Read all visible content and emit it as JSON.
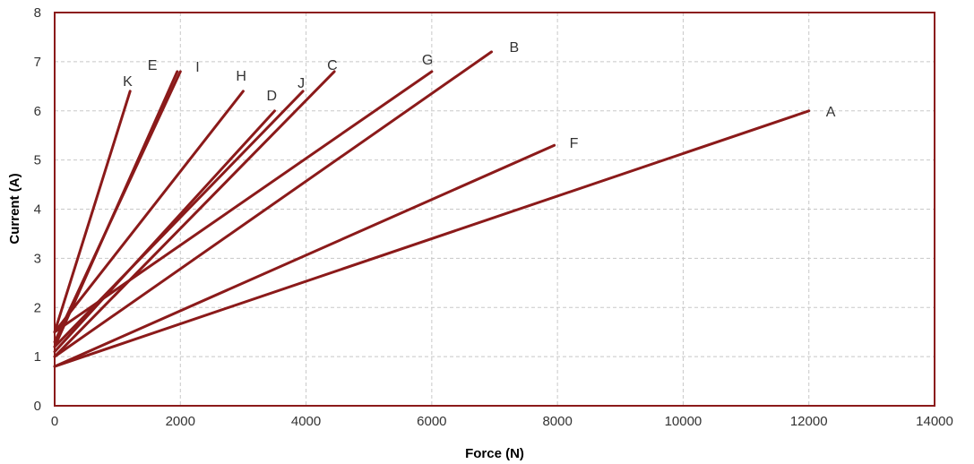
{
  "chart_data": {
    "type": "line",
    "title": "",
    "xlabel": "Force (N)",
    "ylabel": "Current (A)",
    "xlim": [
      0,
      14000
    ],
    "ylim": [
      0,
      8
    ],
    "x_ticks": [
      0,
      2000,
      4000,
      6000,
      8000,
      10000,
      12000,
      14000
    ],
    "y_ticks": [
      0,
      1,
      2,
      3,
      4,
      5,
      6,
      7,
      8
    ],
    "x_tick_labels": [
      "0",
      "2000",
      "4000",
      "6000",
      "8000",
      "10000",
      "12000",
      "14000"
    ],
    "y_tick_labels": [
      "0",
      "1",
      "2",
      "3",
      "4",
      "5",
      "6",
      "7",
      "8"
    ],
    "grid": true,
    "line_color": "#8b1a1a",
    "frame_color": "#8b1a1a",
    "series": [
      {
        "name": "A",
        "x": [
          0,
          12000
        ],
        "y": [
          0.8,
          6.0
        ]
      },
      {
        "name": "B",
        "x": [
          0,
          6950
        ],
        "y": [
          1.0,
          7.2
        ]
      },
      {
        "name": "C",
        "x": [
          0,
          4450
        ],
        "y": [
          1.0,
          6.8
        ]
      },
      {
        "name": "D",
        "x": [
          0,
          3500
        ],
        "y": [
          1.1,
          6.0
        ]
      },
      {
        "name": "E",
        "x": [
          0,
          1950
        ],
        "y": [
          1.2,
          6.8
        ]
      },
      {
        "name": "F",
        "x": [
          0,
          7950
        ],
        "y": [
          0.8,
          5.3
        ]
      },
      {
        "name": "G",
        "x": [
          0,
          6000
        ],
        "y": [
          1.5,
          6.8
        ]
      },
      {
        "name": "H",
        "x": [
          0,
          3000
        ],
        "y": [
          1.5,
          6.4
        ]
      },
      {
        "name": "I",
        "x": [
          0,
          2000
        ],
        "y": [
          1.3,
          6.8
        ]
      },
      {
        "name": "J",
        "x": [
          0,
          3950
        ],
        "y": [
          1.2,
          6.4
        ]
      },
      {
        "name": "K",
        "x": [
          0,
          1200
        ],
        "y": [
          1.5,
          6.4
        ]
      }
    ]
  }
}
